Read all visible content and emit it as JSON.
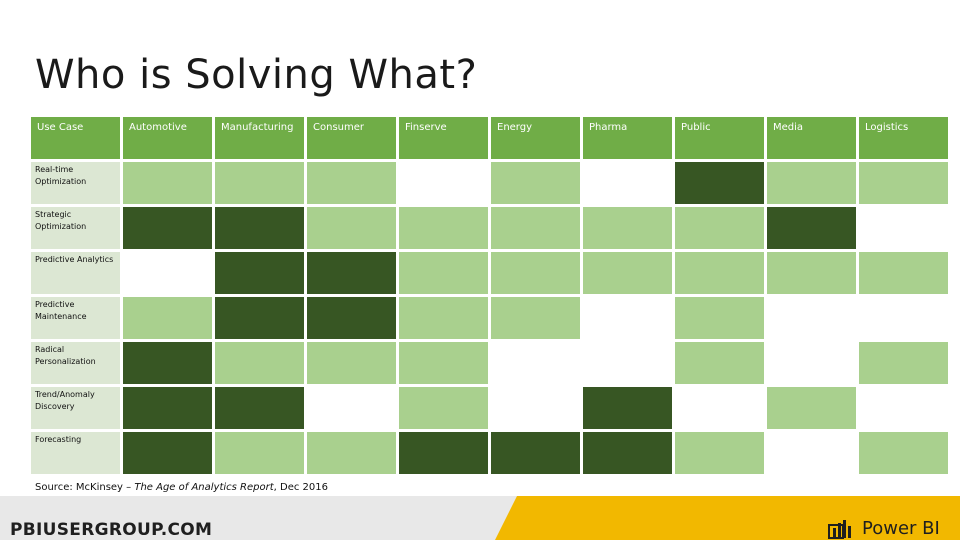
{
  "title": "Who is Solving What?",
  "matrix": {
    "corner": "Use Case",
    "columns": [
      "Automotive",
      "Manufacturing",
      "Consumer",
      "Finserve",
      "Energy",
      "Pharma",
      "Public",
      "Media",
      "Logistics"
    ],
    "rows": [
      {
        "label": "Real-time Optimization",
        "levels": [
          "light",
          "light",
          "light",
          "none",
          "light",
          "none",
          "dark",
          "light",
          "light"
        ]
      },
      {
        "label": "Strategic Optimization",
        "levels": [
          "dark",
          "dark",
          "light",
          "light",
          "light",
          "light",
          "light",
          "dark",
          "none"
        ]
      },
      {
        "label": "Predictive Analytics",
        "levels": [
          "none",
          "dark",
          "dark",
          "light",
          "light",
          "light",
          "light",
          "light",
          "light"
        ]
      },
      {
        "label": "Predictive Maintenance",
        "levels": [
          "light",
          "dark",
          "dark",
          "light",
          "light",
          "none",
          "light",
          "none",
          "none"
        ]
      },
      {
        "label": "Radical Personalization",
        "levels": [
          "dark",
          "light",
          "light",
          "light",
          "none",
          "none",
          "light",
          "none",
          "light"
        ]
      },
      {
        "label": "Trend/Anomaly Discovery",
        "levels": [
          "dark",
          "dark",
          "none",
          "light",
          "none",
          "dark",
          "none",
          "light",
          "none"
        ]
      },
      {
        "label": "Forecasting",
        "levels": [
          "dark",
          "light",
          "light",
          "dark",
          "dark",
          "dark",
          "light",
          "none",
          "light"
        ]
      }
    ]
  },
  "colors": {
    "header": "#70ad47",
    "light": "#a9d08e",
    "dark": "#375623",
    "rowhead": "#dce7d3",
    "footer_accent": "#f2b800"
  },
  "source": {
    "prefix": "Source: McKinsey – ",
    "report": "The Age of Analytics Report",
    "suffix": ", Dec 2016"
  },
  "footer": {
    "brand": "PBIUSERGROUP.COM",
    "product": "Power BI",
    "logo_icon": "power-bi-logo-icon"
  }
}
